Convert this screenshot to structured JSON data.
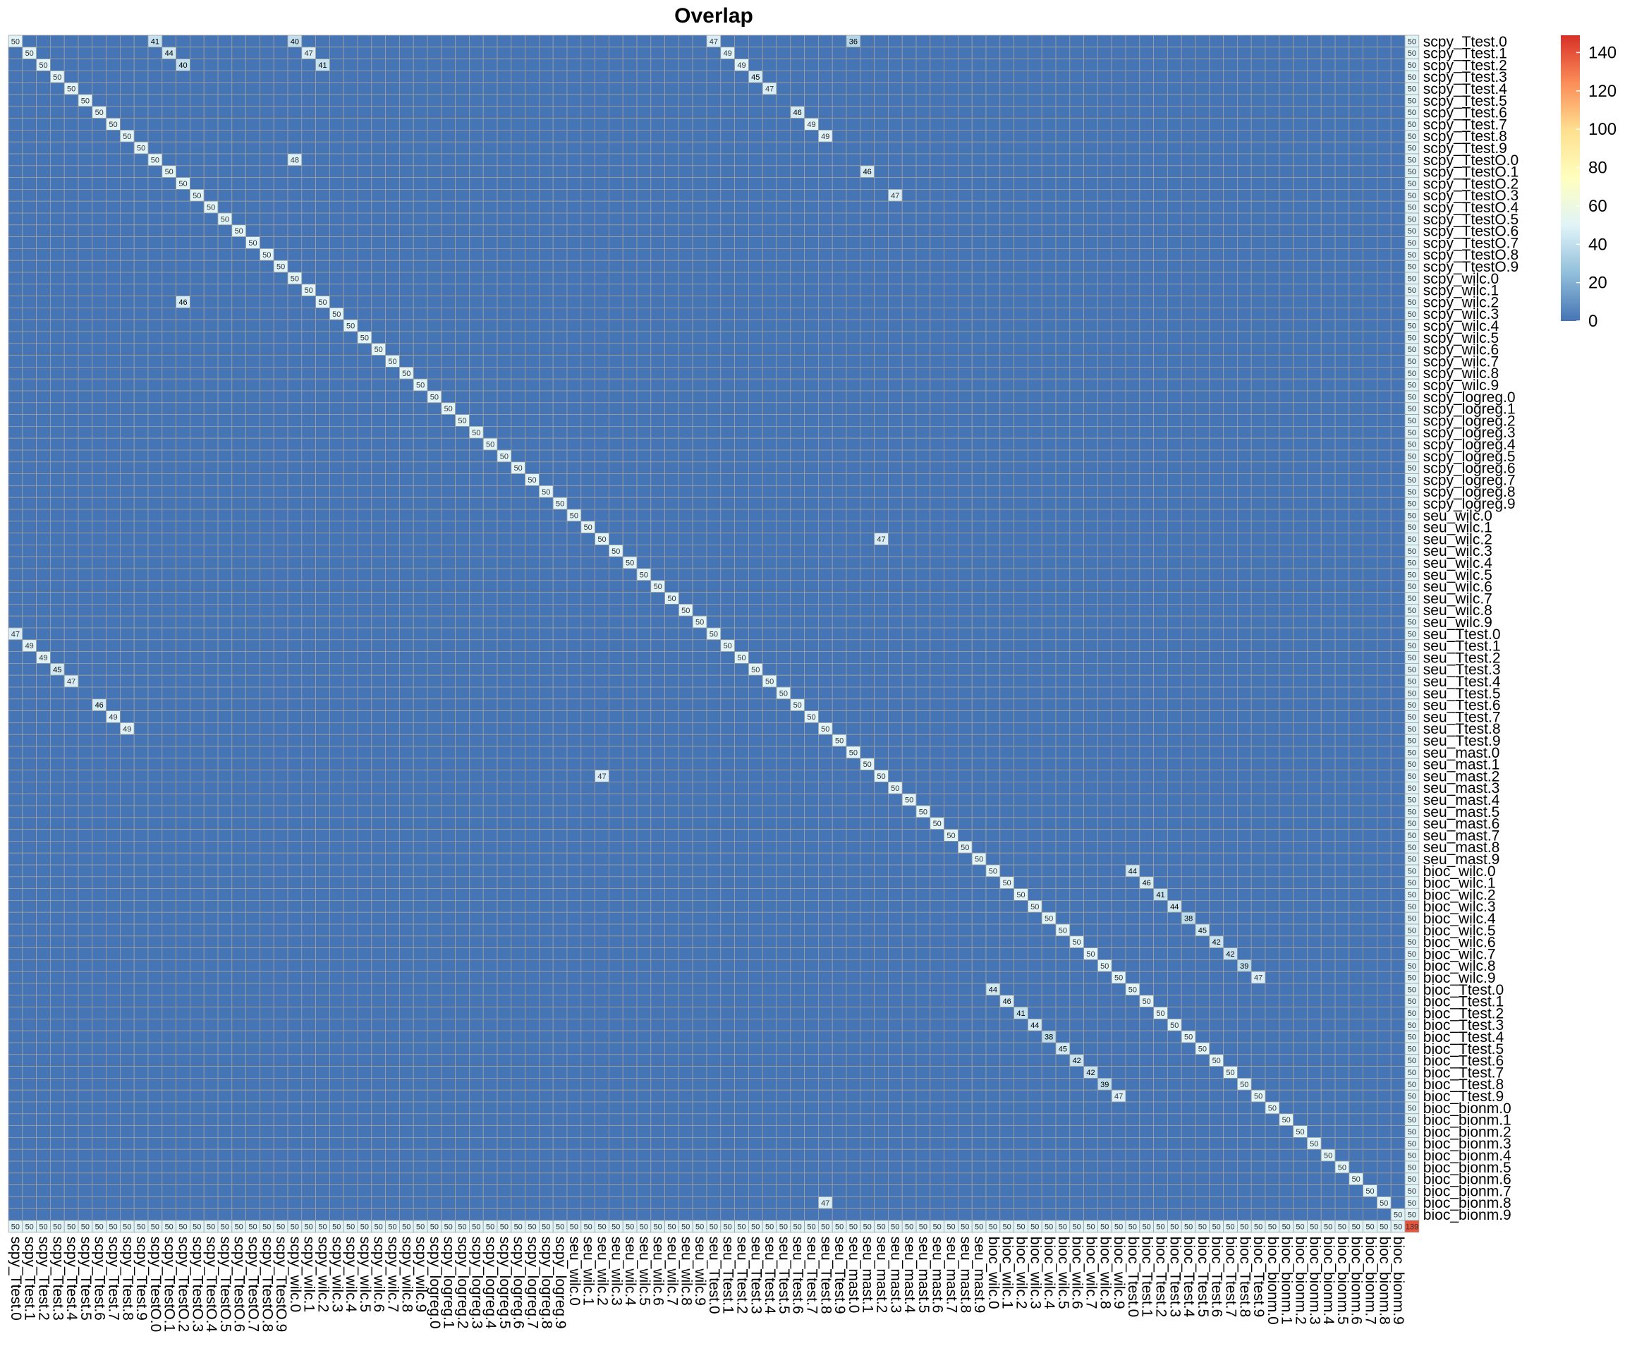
{
  "chart_data": {
    "type": "heatmap",
    "title": "Overlap",
    "labels": [
      "scpy_Ttest.0",
      "scpy_Ttest.1",
      "scpy_Ttest.2",
      "scpy_Ttest.3",
      "scpy_Ttest.4",
      "scpy_Ttest.5",
      "scpy_Ttest.6",
      "scpy_Ttest.7",
      "scpy_Ttest.8",
      "scpy_Ttest.9",
      "scpy_TtestO.0",
      "scpy_TtestO.1",
      "scpy_TtestO.2",
      "scpy_TtestO.3",
      "scpy_TtestO.4",
      "scpy_TtestO.5",
      "scpy_TtestO.6",
      "scpy_TtestO.7",
      "scpy_TtestO.8",
      "scpy_TtestO.9",
      "scpy_wilc.0",
      "scpy_wilc.1",
      "scpy_wilc.2",
      "scpy_wilc.3",
      "scpy_wilc.4",
      "scpy_wilc.5",
      "scpy_wilc.6",
      "scpy_wilc.7",
      "scpy_wilc.8",
      "scpy_wilc.9",
      "scpy_logreg.0",
      "scpy_logreg.1",
      "scpy_logreg.2",
      "scpy_logreg.3",
      "scpy_logreg.4",
      "scpy_logreg.5",
      "scpy_logreg.6",
      "scpy_logreg.7",
      "scpy_logreg.8",
      "scpy_logreg.9",
      "seu_wilc.0",
      "seu_wilc.1",
      "seu_wilc.2",
      "seu_wilc.3",
      "seu_wilc.4",
      "seu_wilc.5",
      "seu_wilc.6",
      "seu_wilc.7",
      "seu_wilc.8",
      "seu_wilc.9",
      "seu_Ttest.0",
      "seu_Ttest.1",
      "seu_Ttest.2",
      "seu_Ttest.3",
      "seu_Ttest.4",
      "seu_Ttest.5",
      "seu_Ttest.6",
      "seu_Ttest.7",
      "seu_Ttest.8",
      "seu_Ttest.9",
      "seu_mast.0",
      "seu_mast.1",
      "seu_mast.2",
      "seu_mast.3",
      "seu_mast.4",
      "seu_mast.5",
      "seu_mast.6",
      "seu_mast.7",
      "seu_mast.8",
      "seu_mast.9",
      "bioc_wilc.0",
      "bioc_wilc.1",
      "bioc_wilc.2",
      "bioc_wilc.3",
      "bioc_wilc.4",
      "bioc_wilc.5",
      "bioc_wilc.6",
      "bioc_wilc.7",
      "bioc_wilc.8",
      "bioc_wilc.9",
      "bioc_Ttest.0",
      "bioc_Ttest.1",
      "bioc_Ttest.2",
      "bioc_Ttest.3",
      "bioc_Ttest.4",
      "bioc_Ttest.5",
      "bioc_Ttest.6",
      "bioc_Ttest.7",
      "bioc_Ttest.8",
      "bioc_Ttest.9",
      "bioc_bionm.0",
      "bioc_bionm.1",
      "bioc_bionm.2",
      "bioc_bionm.3",
      "bioc_bionm.4",
      "bioc_bionm.5",
      "bioc_bionm.6",
      "bioc_bionm.7",
      "bioc_bionm.8",
      "bioc_bionm.9"
    ],
    "diagonal_value": 50,
    "last_column_value": 50,
    "last_row_value": 50,
    "corner_value": 139,
    "highlighted_cells": [
      {
        "row": "scpy_Ttest.0",
        "col": "scpy_TtestO.0",
        "value": 41
      },
      {
        "row": "scpy_Ttest.0",
        "col": "scpy_wilc.0",
        "value": 40
      },
      {
        "row": "scpy_Ttest.0",
        "col": "seu_Ttest.0",
        "value": 47
      },
      {
        "row": "scpy_Ttest.0",
        "col": "seu_mast.0",
        "value": 36
      },
      {
        "row": "scpy_Ttest.1",
        "col": "scpy_TtestO.1",
        "value": 44
      },
      {
        "row": "scpy_Ttest.1",
        "col": "scpy_wilc.1",
        "value": 47
      },
      {
        "row": "scpy_Ttest.1",
        "col": "seu_Ttest.1",
        "value": 49
      },
      {
        "row": "scpy_Ttest.2",
        "col": "scpy_TtestO.2",
        "value": 40
      },
      {
        "row": "scpy_Ttest.2",
        "col": "scpy_wilc.2",
        "value": 41
      },
      {
        "row": "scpy_Ttest.2",
        "col": "seu_Ttest.2",
        "value": 49
      },
      {
        "row": "scpy_Ttest.3",
        "col": "seu_Ttest.3",
        "value": 45
      },
      {
        "row": "scpy_Ttest.4",
        "col": "seu_Ttest.4",
        "value": 47
      },
      {
        "row": "scpy_Ttest.6",
        "col": "seu_Ttest.6",
        "value": 46
      },
      {
        "row": "scpy_Ttest.7",
        "col": "seu_Ttest.7",
        "value": 49
      },
      {
        "row": "scpy_Ttest.8",
        "col": "seu_Ttest.8",
        "value": 49
      },
      {
        "row": "scpy_TtestO.0",
        "col": "scpy_wilc.0",
        "value": 48
      },
      {
        "row": "scpy_TtestO.1",
        "col": "seu_mast.1",
        "value": 46
      },
      {
        "row": "scpy_TtestO.3",
        "col": "seu_mast.3",
        "value": 47
      },
      {
        "row": "scpy_wilc.2",
        "col": "scpy_TtestO.2",
        "value": 46
      },
      {
        "row": "seu_wilc.2",
        "col": "seu_mast.2",
        "value": 47
      },
      {
        "row": "seu_mast.2",
        "col": "seu_wilc.2",
        "value": 47
      },
      {
        "row": "seu_Ttest.0",
        "col": "scpy_Ttest.0",
        "value": 47
      },
      {
        "row": "seu_Ttest.1",
        "col": "scpy_Ttest.1",
        "value": 49
      },
      {
        "row": "seu_Ttest.2",
        "col": "scpy_Ttest.2",
        "value": 49
      },
      {
        "row": "seu_Ttest.3",
        "col": "scpy_Ttest.3",
        "value": 45
      },
      {
        "row": "seu_Ttest.4",
        "col": "scpy_Ttest.4",
        "value": 47
      },
      {
        "row": "seu_Ttest.6",
        "col": "scpy_Ttest.6",
        "value": 46
      },
      {
        "row": "seu_Ttest.7",
        "col": "scpy_Ttest.7",
        "value": 49
      },
      {
        "row": "seu_Ttest.8",
        "col": "scpy_Ttest.8",
        "value": 49
      },
      {
        "row": "bioc_wilc.0",
        "col": "bioc_Ttest.0",
        "value": 44
      },
      {
        "row": "bioc_wilc.1",
        "col": "bioc_Ttest.1",
        "value": 46
      },
      {
        "row": "bioc_wilc.2",
        "col": "bioc_Ttest.2",
        "value": 41
      },
      {
        "row": "bioc_wilc.3",
        "col": "bioc_Ttest.3",
        "value": 44
      },
      {
        "row": "bioc_wilc.4",
        "col": "bioc_Ttest.4",
        "value": 38
      },
      {
        "row": "bioc_wilc.5",
        "col": "bioc_Ttest.5",
        "value": 45
      },
      {
        "row": "bioc_wilc.6",
        "col": "bioc_Ttest.6",
        "value": 42
      },
      {
        "row": "bioc_wilc.7",
        "col": "bioc_Ttest.7",
        "value": 42
      },
      {
        "row": "bioc_wilc.8",
        "col": "bioc_Ttest.8",
        "value": 39
      },
      {
        "row": "bioc_wilc.9",
        "col": "bioc_Ttest.9",
        "value": 47
      },
      {
        "row": "bioc_Ttest.0",
        "col": "bioc_wilc.0",
        "value": 44
      },
      {
        "row": "bioc_Ttest.1",
        "col": "bioc_wilc.1",
        "value": 46
      },
      {
        "row": "bioc_Ttest.2",
        "col": "bioc_wilc.2",
        "value": 41
      },
      {
        "row": "bioc_Ttest.3",
        "col": "bioc_wilc.3",
        "value": 44
      },
      {
        "row": "bioc_Ttest.4",
        "col": "bioc_wilc.4",
        "value": 38
      },
      {
        "row": "bioc_Ttest.5",
        "col": "bioc_wilc.5",
        "value": 45
      },
      {
        "row": "bioc_Ttest.6",
        "col": "bioc_wilc.6",
        "value": 42
      },
      {
        "row": "bioc_Ttest.7",
        "col": "bioc_wilc.7",
        "value": 42
      },
      {
        "row": "bioc_Ttest.8",
        "col": "bioc_wilc.8",
        "value": 39
      },
      {
        "row": "bioc_Ttest.9",
        "col": "bioc_wilc.9",
        "value": 47
      },
      {
        "row": "bioc_bionm.8",
        "col": "seu_Ttest.8",
        "value": 47
      }
    ],
    "colorbar": {
      "ticks": [
        0,
        20,
        40,
        60,
        80,
        100,
        120,
        140
      ],
      "min": 0,
      "max": 149,
      "colors": [
        "#4575b4",
        "#91bfdb",
        "#e0f3f8",
        "#ffffbf",
        "#fee090",
        "#fc8d59",
        "#d73027"
      ]
    },
    "cell_border_color": "#a0a0a0"
  }
}
